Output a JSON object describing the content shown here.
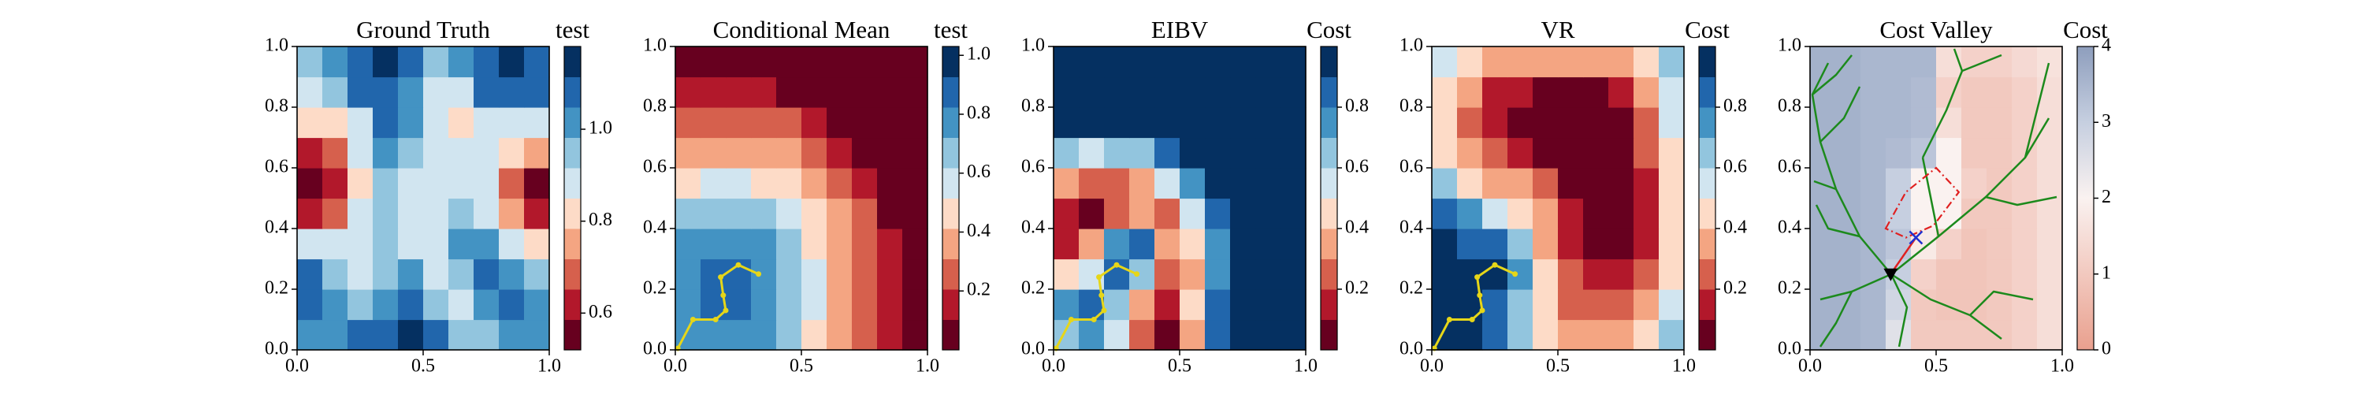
{
  "chart_data": [
    {
      "type": "heatmap",
      "title": "Ground Truth",
      "colorbar_label": "test",
      "xlim": [
        0,
        1
      ],
      "ylim": [
        0,
        1
      ],
      "xticks": [
        {
          "value": 0,
          "label": "0.0"
        },
        0.5,
        {
          "value": 1,
          "label": "1.0"
        }
      ],
      "yticks": [
        {
          "value": 0,
          "label": "0.0"
        },
        0.2,
        0.4,
        0.6,
        0.8,
        {
          "value": 1,
          "label": "1.0"
        }
      ],
      "zlim": [
        0.52,
        1.18
      ],
      "zticks": [
        0.6,
        0.8,
        {
          "value": 1,
          "label": "1.0"
        }
      ],
      "colors": [
        "#67001f",
        "#b2182b",
        "#d6604d",
        "#f4a582",
        "#fddbc7",
        "#d1e5f0",
        "#92c5de",
        "#4393c3",
        "#2166ac",
        "#053061"
      ],
      "z": [
        [
          1.0,
          1.0,
          1.05,
          1.1,
          1.15,
          1.05,
          0.95,
          0.95,
          1.0,
          1.0
        ],
        [
          1.1,
          1.0,
          0.95,
          1.0,
          1.05,
          0.95,
          0.9,
          1.0,
          1.05,
          1.0
        ],
        [
          1.05,
          0.95,
          0.9,
          0.95,
          1.0,
          0.9,
          0.95,
          1.05,
          1.0,
          0.95
        ],
        [
          0.85,
          0.85,
          0.9,
          0.95,
          0.9,
          0.85,
          1.0,
          1.0,
          0.9,
          0.8
        ],
        [
          0.65,
          0.7,
          0.85,
          0.95,
          0.85,
          0.85,
          0.95,
          0.9,
          0.75,
          0.65
        ],
        [
          0.55,
          0.6,
          0.8,
          0.95,
          0.9,
          0.85,
          0.9,
          0.85,
          0.7,
          0.58
        ],
        [
          0.65,
          0.7,
          0.85,
          1.0,
          0.95,
          0.85,
          0.85,
          0.85,
          0.8,
          0.75
        ],
        [
          0.8,
          0.8,
          0.9,
          1.05,
          1.0,
          0.85,
          0.8,
          0.9,
          0.9,
          0.9
        ],
        [
          0.9,
          0.95,
          1.05,
          1.1,
          1.0,
          0.9,
          0.9,
          1.05,
          1.1,
          1.05
        ],
        [
          0.95,
          1.0,
          1.1,
          1.15,
          1.05,
          0.95,
          1.0,
          1.1,
          1.18,
          1.1
        ]
      ]
    },
    {
      "type": "heatmap",
      "title": "Conditional Mean",
      "colorbar_label": "test",
      "xlim": [
        0,
        1
      ],
      "ylim": [
        0,
        1
      ],
      "xticks": [
        {
          "value": 0,
          "label": "0.0"
        },
        0.5,
        {
          "value": 1,
          "label": "1.0"
        }
      ],
      "yticks": [
        {
          "value": 0,
          "label": "0.0"
        },
        0.2,
        0.4,
        0.6,
        0.8,
        {
          "value": 1,
          "label": "1.0"
        }
      ],
      "zlim": [
        0,
        1.03
      ],
      "zticks": [
        0.2,
        0.4,
        0.6,
        0.8,
        {
          "value": 1,
          "label": "1.0"
        }
      ],
      "colors": [
        "#67001f",
        "#b2182b",
        "#d6604d",
        "#f4a582",
        "#fddbc7",
        "#d1e5f0",
        "#92c5de",
        "#4393c3",
        "#2166ac",
        "#053061"
      ],
      "z": [
        [
          0.73,
          0.79,
          0.79,
          0.73,
          0.62,
          0.51,
          0.39,
          0.26,
          0.13,
          0.02
        ],
        [
          0.79,
          0.91,
          0.91,
          0.79,
          0.67,
          0.54,
          0.41,
          0.28,
          0.15,
          0.02
        ],
        [
          0.79,
          0.91,
          0.91,
          0.79,
          0.67,
          0.54,
          0.41,
          0.28,
          0.15,
          0.02
        ],
        [
          0.73,
          0.79,
          0.79,
          0.73,
          0.62,
          0.51,
          0.39,
          0.26,
          0.13,
          0.02
        ],
        [
          0.62,
          0.67,
          0.67,
          0.62,
          0.54,
          0.44,
          0.32,
          0.22,
          0.09,
          0.02
        ],
        [
          0.51,
          0.54,
          0.54,
          0.51,
          0.44,
          0.36,
          0.26,
          0.15,
          0.04,
          0.02
        ],
        [
          0.39,
          0.41,
          0.41,
          0.39,
          0.32,
          0.26,
          0.17,
          0.08,
          0.02,
          0.02
        ],
        [
          0.26,
          0.28,
          0.28,
          0.26,
          0.22,
          0.15,
          0.08,
          0.02,
          0.02,
          0.02
        ],
        [
          0.13,
          0.15,
          0.15,
          0.13,
          0.09,
          0.04,
          0.02,
          0.02,
          0.02,
          0.02
        ],
        [
          0.02,
          0.02,
          0.02,
          0.02,
          0.02,
          0.02,
          0.02,
          0.02,
          0.02,
          0.02
        ]
      ],
      "path": {
        "color": "#e6d619",
        "x": [
          0.01,
          0.07,
          0.16,
          0.2,
          0.19,
          0.18,
          0.25,
          0.33
        ],
        "y": [
          0.005,
          0.1,
          0.1,
          0.13,
          0.18,
          0.24,
          0.28,
          0.25
        ]
      }
    },
    {
      "type": "heatmap",
      "title": "EIBV",
      "colorbar_label": "Cost",
      "xlim": [
        0,
        1
      ],
      "ylim": [
        0,
        1
      ],
      "xticks": [
        {
          "value": 0,
          "label": "0.0"
        },
        0.5,
        {
          "value": 1,
          "label": "1.0"
        }
      ],
      "yticks": [
        {
          "value": 0,
          "label": "0.0"
        },
        0.2,
        0.4,
        0.6,
        0.8,
        {
          "value": 1,
          "label": "1.0"
        }
      ],
      "zlim": [
        0,
        1
      ],
      "zticks": [
        0.2,
        0.4,
        0.6,
        0.8
      ],
      "colors": [
        "#67001f",
        "#b2182b",
        "#d6604d",
        "#f4a582",
        "#fddbc7",
        "#d1e5f0",
        "#92c5de",
        "#4393c3",
        "#2166ac",
        "#053061"
      ],
      "z": [
        [
          0.6,
          0.7,
          0.5,
          0.25,
          0.05,
          0.35,
          0.8,
          0.97,
          0.97,
          0.97
        ],
        [
          0.7,
          0.8,
          0.6,
          0.3,
          0.1,
          0.4,
          0.8,
          0.97,
          0.97,
          0.97
        ],
        [
          0.4,
          0.5,
          0.8,
          0.6,
          0.2,
          0.35,
          0.75,
          0.95,
          0.97,
          0.97
        ],
        [
          0.15,
          0.3,
          0.7,
          0.8,
          0.3,
          0.4,
          0.75,
          0.95,
          0.97,
          0.97
        ],
        [
          0.1,
          0.05,
          0.2,
          0.3,
          0.25,
          0.5,
          0.8,
          0.97,
          0.97,
          0.97
        ],
        [
          0.3,
          0.2,
          0.25,
          0.35,
          0.5,
          0.7,
          0.9,
          0.97,
          0.97,
          0.97
        ],
        [
          0.6,
          0.55,
          0.6,
          0.65,
          0.8,
          0.9,
          0.97,
          0.97,
          0.97,
          0.97
        ],
        [
          0.9,
          0.9,
          0.9,
          0.92,
          0.95,
          0.97,
          0.97,
          0.97,
          0.97,
          0.97
        ],
        [
          0.97,
          0.97,
          0.97,
          0.97,
          0.97,
          0.97,
          0.97,
          0.97,
          0.97,
          0.97
        ],
        [
          0.97,
          0.97,
          0.97,
          0.97,
          0.97,
          0.97,
          0.97,
          0.97,
          0.97,
          0.97
        ]
      ],
      "path": {
        "color": "#e6d619",
        "x": [
          0.01,
          0.07,
          0.16,
          0.2,
          0.19,
          0.18,
          0.25,
          0.33
        ],
        "y": [
          0.005,
          0.1,
          0.1,
          0.13,
          0.18,
          0.24,
          0.28,
          0.25
        ]
      }
    },
    {
      "type": "heatmap",
      "title": "VR",
      "colorbar_label": "Cost",
      "xlim": [
        0,
        1
      ],
      "ylim": [
        0,
        1
      ],
      "xticks": [
        {
          "value": 0,
          "label": "0.0"
        },
        0.5,
        {
          "value": 1,
          "label": "1.0"
        }
      ],
      "yticks": [
        {
          "value": 0,
          "label": "0.0"
        },
        0.2,
        0.4,
        0.6,
        0.8,
        {
          "value": 1,
          "label": "1.0"
        }
      ],
      "zlim": [
        0,
        1
      ],
      "zticks": [
        0.2,
        0.4,
        0.6,
        0.8
      ],
      "colors": [
        "#67001f",
        "#b2182b",
        "#d6604d",
        "#f4a582",
        "#fddbc7",
        "#d1e5f0",
        "#92c5de",
        "#4393c3",
        "#2166ac",
        "#053061"
      ],
      "z": [
        [
          0.95,
          0.9,
          0.8,
          0.6,
          0.4,
          0.3,
          0.3,
          0.35,
          0.45,
          0.6
        ],
        [
          0.95,
          0.92,
          0.85,
          0.65,
          0.4,
          0.25,
          0.2,
          0.2,
          0.3,
          0.5
        ],
        [
          0.95,
          0.95,
          0.9,
          0.7,
          0.4,
          0.2,
          0.12,
          0.1,
          0.2,
          0.45
        ],
        [
          0.9,
          0.85,
          0.8,
          0.6,
          0.35,
          0.18,
          0.08,
          0.05,
          0.15,
          0.45
        ],
        [
          0.8,
          0.7,
          0.55,
          0.45,
          0.3,
          0.15,
          0.05,
          0.03,
          0.15,
          0.45
        ],
        [
          0.6,
          0.45,
          0.35,
          0.3,
          0.2,
          0.08,
          0.03,
          0.03,
          0.15,
          0.45
        ],
        [
          0.45,
          0.3,
          0.2,
          0.12,
          0.05,
          0.03,
          0.03,
          0.05,
          0.2,
          0.45
        ],
        [
          0.4,
          0.25,
          0.12,
          0.05,
          0.03,
          0.03,
          0.03,
          0.07,
          0.25,
          0.5
        ],
        [
          0.45,
          0.3,
          0.18,
          0.1,
          0.07,
          0.07,
          0.08,
          0.15,
          0.3,
          0.55
        ],
        [
          0.55,
          0.45,
          0.35,
          0.3,
          0.3,
          0.3,
          0.3,
          0.35,
          0.45,
          0.6
        ]
      ],
      "path": {
        "color": "#e6d619",
        "x": [
          0.01,
          0.07,
          0.16,
          0.2,
          0.19,
          0.18,
          0.25,
          0.33
        ],
        "y": [
          0.005,
          0.1,
          0.1,
          0.13,
          0.18,
          0.24,
          0.28,
          0.25
        ]
      }
    },
    {
      "type": "heatmap",
      "title": "Cost Valley",
      "colorbar_label": "Cost",
      "continuous": true,
      "xlim": [
        0,
        1
      ],
      "ylim": [
        0,
        1
      ],
      "xticks": [
        {
          "value": 0,
          "label": "0.0"
        },
        0.5,
        {
          "value": 1,
          "label": "1.0"
        }
      ],
      "yticks": [
        {
          "value": 0,
          "label": "0.0"
        },
        0.2,
        0.4,
        0.6,
        0.8,
        {
          "value": 1,
          "label": "1.0"
        }
      ],
      "zlim": [
        0,
        4
      ],
      "zticks": [
        0,
        1,
        2,
        3,
        4
      ],
      "colors": [
        "#e9a08e",
        "#f2c9bf",
        "#faf2f0",
        "#c6cfe0",
        "#8e9ebd"
      ],
      "z": [
        [
          3.6,
          3.6,
          3.5,
          2.5,
          1.0,
          1.0,
          1.0,
          1.0,
          1.2,
          1.5
        ],
        [
          3.6,
          3.6,
          3.5,
          2.8,
          1.0,
          0.9,
          0.9,
          1.0,
          1.2,
          1.5
        ],
        [
          3.6,
          3.6,
          3.5,
          3.0,
          1.2,
          0.9,
          0.9,
          1.0,
          1.2,
          1.5
        ],
        [
          3.6,
          3.6,
          3.5,
          3.2,
          1.8,
          1.2,
          0.9,
          1.0,
          1.2,
          1.5
        ],
        [
          3.6,
          3.6,
          3.5,
          3.0,
          2.0,
          2.0,
          1.0,
          1.0,
          1.2,
          1.5
        ],
        [
          3.6,
          3.6,
          3.5,
          3.0,
          2.0,
          2.0,
          1.2,
          1.0,
          1.2,
          1.5
        ],
        [
          3.6,
          3.6,
          3.5,
          3.4,
          3.2,
          2.0,
          1.0,
          1.0,
          1.2,
          1.5
        ],
        [
          3.6,
          3.6,
          3.5,
          3.5,
          3.4,
          1.5,
          1.0,
          1.0,
          1.2,
          1.5
        ],
        [
          3.6,
          3.6,
          3.5,
          3.5,
          3.4,
          1.2,
          1.0,
          1.0,
          1.2,
          1.5
        ],
        [
          3.6,
          3.6,
          3.5,
          3.5,
          3.5,
          1.5,
          1.2,
          1.2,
          1.4,
          1.6
        ]
      ],
      "polygon": {
        "color": "#e02020",
        "x": [
          0.3,
          0.38,
          0.5,
          0.59,
          0.49,
          0.38
        ],
        "y": [
          0.4,
          0.52,
          0.6,
          0.52,
          0.41,
          0.37
        ]
      },
      "segment": {
        "color": "#e02020",
        "x": [
          0.32,
          0.42
        ],
        "y": [
          0.25,
          0.37
        ]
      },
      "markers": [
        {
          "x": 0.32,
          "y": 0.25,
          "symbol": "triangle",
          "color": "#000000"
        },
        {
          "x": 0.42,
          "y": 0.37,
          "symbol": "cross",
          "color": "#2030d0"
        }
      ]
    }
  ]
}
